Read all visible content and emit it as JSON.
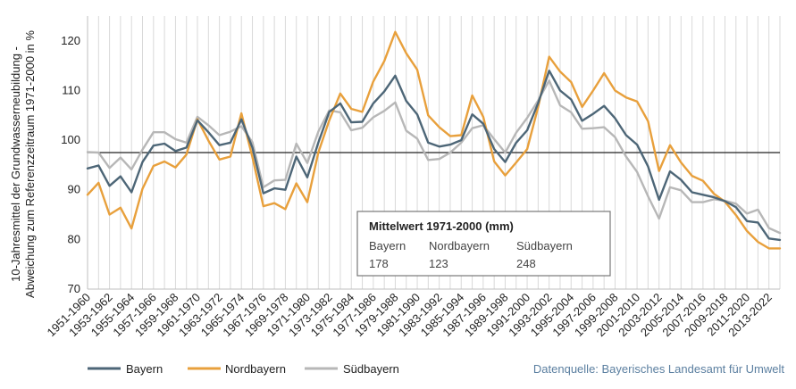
{
  "chart_data": {
    "type": "line",
    "ylabel": "10-Jahresmittel der Grundwasserneubildung - Abweichung zum Referenzzeitraum 1971-2000 in %",
    "ylabel_lines": [
      "10-Jahresmittel der Grundwasserneubildung -",
      "Abweichung zum Referenzzeitraum 1971-2000 in %"
    ],
    "ylim": [
      70,
      125
    ],
    "yticks": [
      70,
      80,
      90,
      100,
      110,
      120
    ],
    "reference_line": 97.5,
    "grid": "vertical",
    "legend_position": "bottom-left",
    "x": [
      "1951-1960",
      "1952-1961",
      "1953-1962",
      "1954-1963",
      "1955-1964",
      "1956-1965",
      "1957-1966",
      "1958-1967",
      "1959-1968",
      "1960-1969",
      "1961-1970",
      "1962-1971",
      "1963-1972",
      "1964-1973",
      "1965-1974",
      "1966-1975",
      "1967-1976",
      "1968-1977",
      "1969-1978",
      "1970-1979",
      "1971-1980",
      "1972-1981",
      "1973-1982",
      "1974-1983",
      "1975-1984",
      "1976-1985",
      "1977-1986",
      "1978-1987",
      "1979-1988",
      "1980-1989",
      "1981-1990",
      "1982-1991",
      "1983-1992",
      "1984-1993",
      "1985-1994",
      "1986-1995",
      "1987-1996",
      "1988-1997",
      "1989-1998",
      "1990-1999",
      "1991-2000",
      "1992-2001",
      "1993-2002",
      "1994-2003",
      "1995-2004",
      "1996-2005",
      "1997-2006",
      "1998-2007",
      "1999-2008",
      "2000-2009",
      "2001-2010",
      "2002-2011",
      "2003-2012",
      "2004-2013",
      "2005-2014",
      "2006-2015",
      "2007-2016",
      "2008-2017",
      "2009-2018",
      "2010-2019",
      "2011-2020",
      "2012-2021",
      "2013-2022",
      "2014-2023"
    ],
    "x_tick_labels": [
      "1951-1960",
      "1953-1962",
      "1955-1964",
      "1957-1966",
      "1959-1968",
      "1961-1970",
      "1963-1972",
      "1965-1974",
      "1967-1976",
      "1969-1978",
      "1971-1980",
      "1973-1982",
      "1975-1984",
      "1977-1986",
      "1979-1988",
      "1981-1990",
      "1983-1992",
      "1985-1994",
      "1987-1996",
      "1989-1998",
      "1991-2000",
      "1993-2002",
      "1995-2004",
      "1997-2006",
      "1999-2008",
      "2001-2010",
      "2003-2012",
      "2005-2014",
      "2007-2016",
      "2009-2018",
      "2011-2020",
      "2013-2022"
    ],
    "series": [
      {
        "name": "Bayern",
        "color": "#4d6677",
        "values": [
          94.3,
          94.9,
          90.8,
          92.7,
          89.5,
          95.6,
          98.9,
          99.3,
          97.8,
          98.5,
          104.0,
          101.6,
          99.0,
          99.5,
          104.2,
          98.5,
          89.3,
          90.3,
          90.0,
          96.7,
          92.5,
          99.5,
          105.7,
          107.4,
          103.6,
          103.7,
          107.4,
          109.8,
          113.0,
          107.9,
          105.2,
          99.5,
          98.7,
          99.1,
          100.0,
          105.2,
          103.3,
          98.2,
          95.6,
          99.5,
          102.0,
          107.5,
          114.0,
          110.0,
          108.2,
          103.9,
          105.3,
          106.9,
          104.4,
          101.0,
          99.1,
          94.7,
          88.0,
          93.7,
          92.0,
          89.5,
          89.0,
          88.5,
          87.7,
          86.5,
          83.7,
          83.4,
          80.2,
          79.9
        ]
      },
      {
        "name": "Nordbayern",
        "color": "#e8a03c",
        "values": [
          89.0,
          91.4,
          85.0,
          86.4,
          82.2,
          90.2,
          94.8,
          95.7,
          94.5,
          97.1,
          104.2,
          99.9,
          96.1,
          96.7,
          105.4,
          96.6,
          86.7,
          87.3,
          86.1,
          91.3,
          87.5,
          97.5,
          104.0,
          109.4,
          106.3,
          105.7,
          111.8,
          115.9,
          121.8,
          117.5,
          114.2,
          105.0,
          102.6,
          100.8,
          101.0,
          109.0,
          104.7,
          95.7,
          92.9,
          95.5,
          98.2,
          106.7,
          116.8,
          113.8,
          111.7,
          106.7,
          110.0,
          113.5,
          110.0,
          108.6,
          107.8,
          103.8,
          93.8,
          99.0,
          95.5,
          92.8,
          91.8,
          89.2,
          87.6,
          84.9,
          81.7,
          79.5,
          78.2,
          78.2
        ]
      },
      {
        "name": "Südbayern",
        "color": "#b7b7b7",
        "values": [
          97.6,
          97.5,
          94.4,
          96.5,
          94.1,
          98.1,
          101.6,
          101.6,
          100.2,
          99.5,
          104.7,
          103.0,
          101.0,
          101.7,
          102.8,
          99.6,
          90.5,
          91.9,
          92.0,
          99.3,
          95.4,
          101.7,
          106.0,
          105.6,
          102.0,
          102.5,
          104.6,
          105.9,
          107.6,
          101.9,
          100.3,
          96.0,
          96.2,
          97.5,
          99.5,
          102.4,
          103.0,
          100.2,
          97.5,
          101.5,
          104.5,
          108.0,
          112.0,
          107.0,
          105.6,
          102.3,
          102.4,
          102.6,
          100.6,
          96.7,
          93.6,
          88.7,
          84.2,
          90.5,
          89.9,
          87.5,
          87.5,
          88.1,
          87.8,
          87.2,
          85.2,
          86.0,
          82.3,
          81.3
        ]
      }
    ],
    "annotation": {
      "title": "Mittelwert 1971-2000 (mm)",
      "labels": [
        "Bayern",
        "Nordbayern",
        "Südbayern"
      ],
      "values": [
        "178",
        "123",
        "248"
      ]
    },
    "source": "Datenquelle: Bayerisches Landesamt für Umwelt"
  }
}
